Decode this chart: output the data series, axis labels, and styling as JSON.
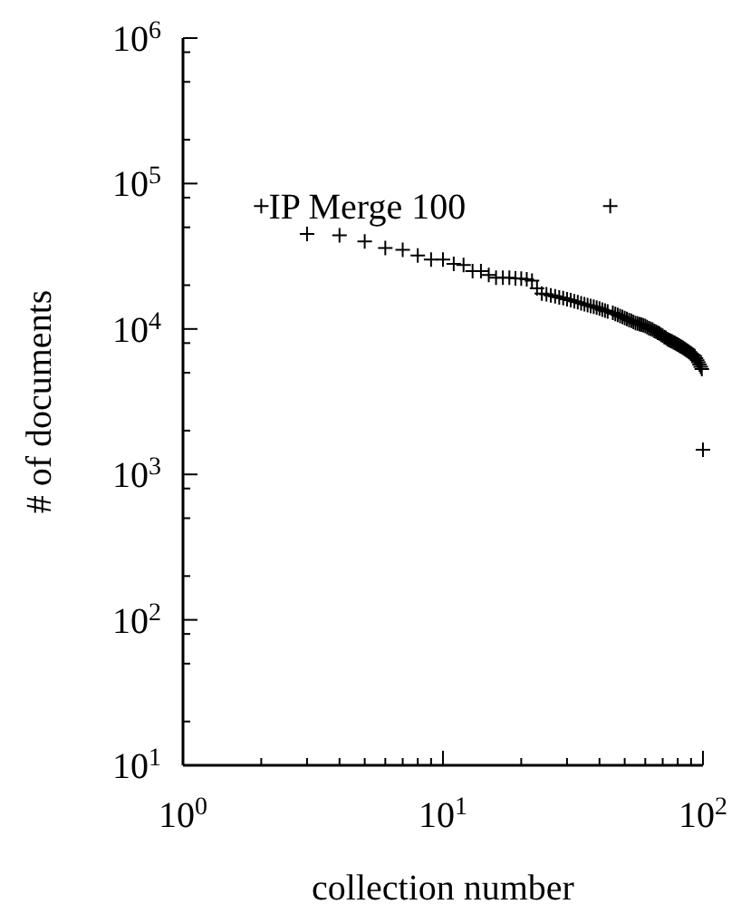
{
  "chart_data": {
    "type": "scatter",
    "xlabel": "collection number",
    "ylabel": "# of documents",
    "log": "xy",
    "marker": "cross",
    "grid": false,
    "legend": false,
    "xlim": [
      1,
      100
    ],
    "ylim": [
      10,
      1000000
    ],
    "xticks": [
      {
        "value": 1,
        "label": "10$^{0}$"
      },
      {
        "value": 2,
        "label": null
      },
      {
        "value": 3,
        "label": null
      },
      {
        "value": 4,
        "label": null
      },
      {
        "value": 5,
        "label": null
      },
      {
        "value": 6,
        "label": null
      },
      {
        "value": 7,
        "label": null
      },
      {
        "value": 8,
        "label": null
      },
      {
        "value": 9,
        "label": null
      },
      {
        "value": 10,
        "label": "10$^{1}$"
      },
      {
        "value": 20,
        "label": null
      },
      {
        "value": 30,
        "label": null
      },
      {
        "value": 40,
        "label": null
      },
      {
        "value": 50,
        "label": null
      },
      {
        "value": 60,
        "label": null
      },
      {
        "value": 70,
        "label": null
      },
      {
        "value": 80,
        "label": null
      },
      {
        "value": 90,
        "label": null
      },
      {
        "value": 100,
        "label": "10$^{2}$"
      }
    ],
    "yticks": [
      {
        "value": 10,
        "label": "10$^{1}$"
      },
      {
        "value": 20,
        "label": null
      },
      {
        "value": 50,
        "label": null
      },
      {
        "value": 80,
        "label": null
      },
      {
        "value": 100,
        "label": "10$^{2}$"
      },
      {
        "value": 200,
        "label": null
      },
      {
        "value": 500,
        "label": null
      },
      {
        "value": 800,
        "label": null
      },
      {
        "value": 1000,
        "label": "10$^{3}$"
      },
      {
        "value": 2000,
        "label": null
      },
      {
        "value": 5000,
        "label": null
      },
      {
        "value": 8000,
        "label": null
      },
      {
        "value": 10000,
        "label": "10$^{4}$"
      },
      {
        "value": 20000,
        "label": null
      },
      {
        "value": 50000,
        "label": null
      },
      {
        "value": 80000,
        "label": null
      },
      {
        "value": 100000,
        "label": "10$^{5}$"
      },
      {
        "value": 200000,
        "label": null
      },
      {
        "value": 500000,
        "label": null
      },
      {
        "value": 800000,
        "label": null
      },
      {
        "value": 1000000,
        "label": "10$^{6}$"
      }
    ],
    "series": [
      {
        "name": "IP Merge 100",
        "color": "#000000",
        "x": [
          2,
          3,
          4,
          5,
          6,
          7,
          8,
          9,
          10,
          11,
          12,
          13,
          14,
          15,
          16,
          17,
          18,
          19,
          20,
          21,
          22,
          23,
          24,
          25,
          26,
          27,
          28,
          29,
          30,
          31,
          32,
          33,
          34,
          35,
          36,
          37,
          38,
          39,
          40,
          41,
          42,
          43,
          44,
          45,
          46,
          47,
          48,
          49,
          50,
          51,
          52,
          53,
          54,
          55,
          56,
          57,
          58,
          59,
          60,
          61,
          62,
          63,
          64,
          65,
          66,
          67,
          68,
          69,
          70,
          71,
          72,
          73,
          74,
          75,
          76,
          77,
          78,
          79,
          80,
          81,
          82,
          83,
          84,
          85,
          86,
          87,
          88,
          89,
          90,
          91,
          92,
          93,
          94,
          95,
          96,
          97,
          98,
          99,
          100
        ],
        "values": [
          70000,
          45000,
          44000,
          40000,
          36000,
          35000,
          32000,
          30000,
          30000,
          28000,
          27500,
          25000,
          25000,
          23500,
          22500,
          22500,
          22500,
          22300,
          22200,
          22000,
          21500,
          19000,
          17500,
          17300,
          17000,
          16800,
          16500,
          16300,
          16000,
          15800,
          15500,
          15300,
          15000,
          14800,
          14600,
          14400,
          14200,
          14000,
          13800,
          13600,
          13400,
          13200,
          70000,
          12900,
          12700,
          12500,
          12300,
          12100,
          11900,
          11700,
          11500,
          11400,
          11200,
          11000,
          10900,
          10800,
          10700,
          10600,
          10500,
          10300,
          10100,
          10000,
          9900,
          9700,
          9600,
          9400,
          9300,
          9100,
          9000,
          8800,
          8700,
          8500,
          8400,
          8300,
          8200,
          8100,
          8000,
          7900,
          7800,
          7700,
          7600,
          7500,
          7400,
          7300,
          7200,
          7100,
          7000,
          6900,
          6800,
          6700,
          6600,
          6500,
          6300,
          6100,
          5900,
          5700,
          5500,
          5300,
          1480
        ]
      }
    ]
  }
}
